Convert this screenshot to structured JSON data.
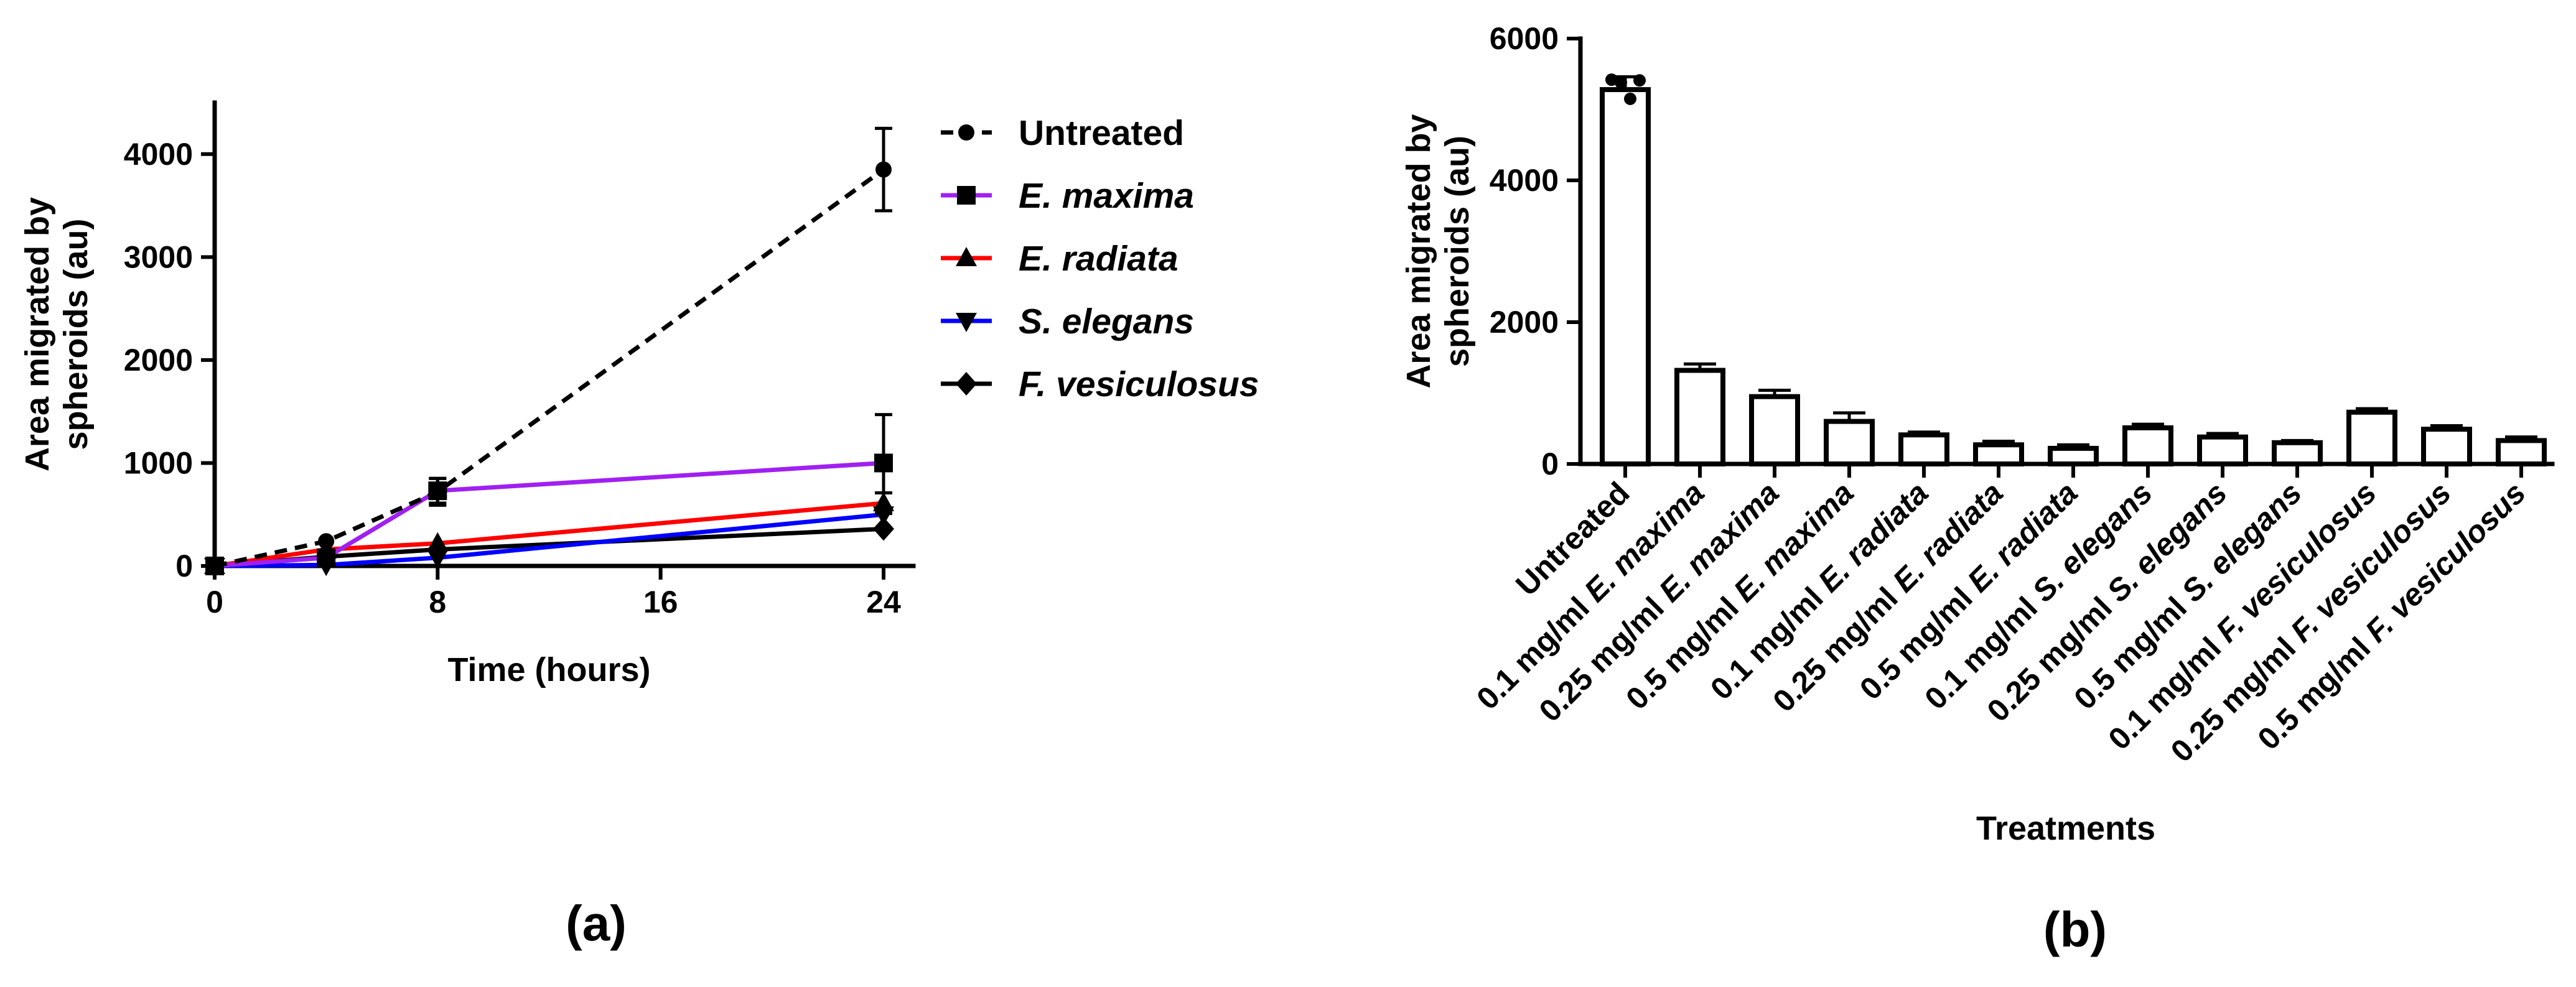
{
  "chart_data": [
    {
      "panel": "(a)",
      "type": "line",
      "xlabel": "Time (hours)",
      "ylabel_lines": [
        "Area migrated by",
        "spheroids (au)"
      ],
      "xlim": [
        0,
        24
      ],
      "ylim": [
        0,
        4500
      ],
      "xticks": [
        0,
        8,
        16,
        24
      ],
      "yticks": [
        0,
        1000,
        2000,
        3000,
        4000
      ],
      "series": [
        {
          "name": "Untreated",
          "italic": false,
          "color": "#000000",
          "dashed": true,
          "marker": "circle",
          "x": [
            0,
            4,
            8,
            24
          ],
          "y": [
            0,
            240,
            720,
            3850
          ],
          "err": [
            0,
            0,
            130,
            400
          ]
        },
        {
          "name": "E. maxima",
          "italic": true,
          "color": "#a020f0",
          "dashed": false,
          "marker": "square",
          "x": [
            0,
            4,
            8,
            24
          ],
          "y": [
            0,
            80,
            730,
            1000
          ],
          "err": [
            0,
            0,
            120,
            470
          ]
        },
        {
          "name": "E. radiata",
          "italic": true,
          "color": "#ff0000",
          "dashed": false,
          "marker": "triangle-up",
          "x": [
            0,
            4,
            8,
            24
          ],
          "y": [
            0,
            160,
            220,
            610
          ],
          "err": [
            0,
            0,
            0,
            100
          ]
        },
        {
          "name": "S. elegans",
          "italic": true,
          "color": "#0000ff",
          "dashed": false,
          "marker": "triangle-down",
          "x": [
            0,
            4,
            8,
            24
          ],
          "y": [
            0,
            10,
            80,
            500
          ],
          "err": [
            0,
            0,
            0,
            0
          ]
        },
        {
          "name": "F. vesiculosus",
          "italic": true,
          "color": "#000000",
          "dashed": false,
          "marker": "diamond",
          "x": [
            0,
            4,
            8,
            24
          ],
          "y": [
            0,
            90,
            160,
            360
          ],
          "err": [
            0,
            0,
            0,
            0
          ]
        }
      ]
    },
    {
      "panel": "(b)",
      "type": "bar",
      "xlabel": "Treatments",
      "ylabel_lines": [
        "Area migrated by",
        "spheroids (au)"
      ],
      "ylim": [
        0,
        6000
      ],
      "yticks": [
        0,
        2000,
        4000,
        6000
      ],
      "categories": [
        {
          "prefix": "",
          "species": "Untreated",
          "italic": false
        },
        {
          "prefix": "0.1 mg/ml ",
          "species": "E. maxima",
          "italic": true
        },
        {
          "prefix": "0.25 mg/ml ",
          "species": "E. maxima",
          "italic": true
        },
        {
          "prefix": "0.5 mg/ml ",
          "species": "E. maxima",
          "italic": true
        },
        {
          "prefix": "0.1 mg/ml ",
          "species": "E. radiata",
          "italic": true
        },
        {
          "prefix": "0.25 mg/ml ",
          "species": "E. radiata",
          "italic": true
        },
        {
          "prefix": "0.5 mg/ml ",
          "species": "E. radiata",
          "italic": true
        },
        {
          "prefix": "0.1 mg/ml ",
          "species": "S. elegans",
          "italic": true
        },
        {
          "prefix": "0.25 mg/ml ",
          "species": "S. elegans",
          "italic": true
        },
        {
          "prefix": "0.5 mg/ml ",
          "species": "S. elegans",
          "italic": true
        },
        {
          "prefix": "0.1 mg/ml ",
          "species": "F. vesiculosus",
          "italic": true
        },
        {
          "prefix": "0.25 mg/ml ",
          "species": "F. vesiculosus",
          "italic": true
        },
        {
          "prefix": "0.5 mg/ml ",
          "species": "F. vesiculosus",
          "italic": true
        }
      ],
      "values": [
        5280,
        1320,
        950,
        600,
        410,
        270,
        220,
        510,
        380,
        300,
        730,
        490,
        330
      ],
      "err": [
        180,
        90,
        90,
        120,
        40,
        50,
        50,
        50,
        50,
        30,
        50,
        50,
        50
      ],
      "points": [
        [
          5420,
          5380,
          5150,
          5410
        ]
      ]
    }
  ]
}
